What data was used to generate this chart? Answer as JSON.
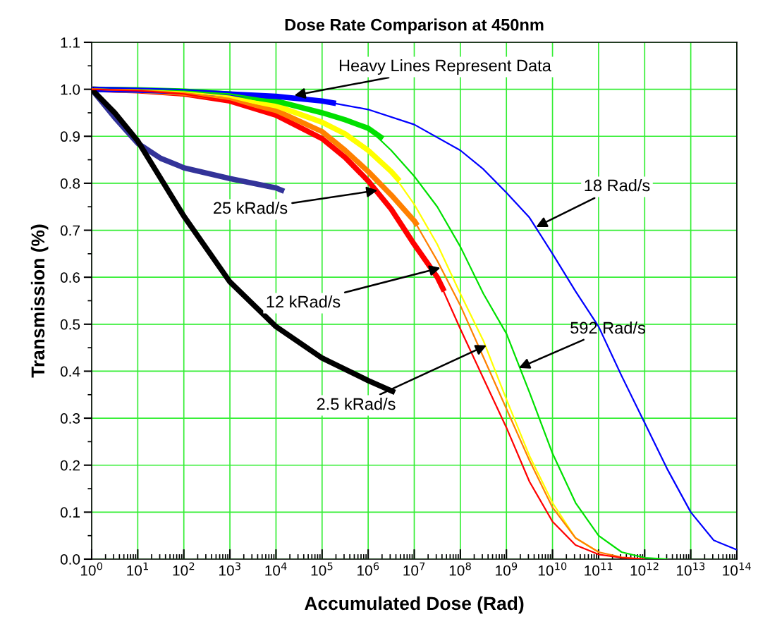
{
  "chart_data": {
    "type": "line",
    "title": "Dose Rate Comparison at 450nm",
    "xlabel": "Accumulated Dose (Rad)",
    "ylabel": "Transmission (%)",
    "log": "x",
    "grid": true,
    "line_style": "solid",
    "marker": "none",
    "xlim": [
      1,
      100000000000000.0
    ],
    "xticks": [
      {
        "value": 1,
        "label": "10$^{0}$"
      },
      {
        "value": 10,
        "label": "10$^{1}$"
      },
      {
        "value": 100,
        "label": "10$^{2}$"
      },
      {
        "value": 1000,
        "label": "10$^{3}$"
      },
      {
        "value": 10000.0,
        "label": "10$^{4}$"
      },
      {
        "value": 100000.0,
        "label": "10$^{5}$"
      },
      {
        "value": 1000000.0,
        "label": "10$^{6}$"
      },
      {
        "value": 10000000.0,
        "label": "10$^{7}$"
      },
      {
        "value": 100000000.0,
        "label": "10$^{8}$"
      },
      {
        "value": 1000000000.0,
        "label": "10$^{9}$"
      },
      {
        "value": 10000000000.0,
        "label": "10$^{10}$"
      },
      {
        "value": 100000000000.0,
        "label": "10$^{11}$"
      },
      {
        "value": 1000000000000.0,
        "label": "10$^{12}$"
      },
      {
        "value": 10000000000000.0,
        "label": "10$^{13}$"
      },
      {
        "value": 100000000000000.0,
        "label": "10$^{14}$"
      }
    ],
    "ylim": [
      0,
      1.1
    ],
    "yticks": [
      {
        "value": 0,
        "label": "0.0"
      },
      0.1,
      0.2,
      0.3,
      0.4,
      0.5,
      0.6,
      0.7,
      0.8,
      0.9,
      {
        "value": 1,
        "label": "1.0"
      },
      1.1
    ],
    "series": [
      {
        "color": "#ff0000",
        "x": [
          1,
          10,
          100,
          1000,
          10000.0,
          100000.0,
          316000.0,
          1000000.0,
          3160000.0,
          10000000.0,
          31600000.0,
          100000000.0,
          316000000.0,
          1000000000.0,
          3160000000.0,
          10000000000.0,
          31600000000.0,
          100000000000.0,
          316000000000.0,
          1000000000000.0
        ],
        "values": [
          1.0,
          0.997,
          0.99,
          0.975,
          0.945,
          0.895,
          0.855,
          0.805,
          0.745,
          0.67,
          0.6,
          0.49,
          0.385,
          0.28,
          0.165,
          0.08,
          0.03,
          0.01,
          0.003,
          0.0
        ]
      },
      {
        "color": "#ff8000",
        "x": [
          1,
          10,
          100,
          1000,
          10000.0,
          100000.0,
          316000.0,
          1000000.0,
          3160000.0,
          10000000.0,
          31600000.0,
          100000000.0,
          316000000.0,
          1000000000.0,
          3160000000.0,
          10000000000.0,
          31600000000.0,
          100000000000.0,
          316000000000.0,
          1000000000000.0
        ],
        "values": [
          1.0,
          0.998,
          0.992,
          0.98,
          0.955,
          0.91,
          0.87,
          0.825,
          0.775,
          0.72,
          0.635,
          0.54,
          0.43,
          0.32,
          0.21,
          0.11,
          0.045,
          0.015,
          0.004,
          0.0
        ]
      },
      {
        "color": "#ffff00",
        "x": [
          1,
          10,
          100,
          1000,
          10000.0,
          100000.0,
          316000.0,
          1000000.0,
          3160000.0,
          10000000.0,
          31600000.0,
          100000000.0,
          316000000.0,
          1000000000.0,
          3160000000.0,
          10000000000.0,
          31600000000.0,
          100000000000.0
        ],
        "values": [
          1.0,
          0.998,
          0.994,
          0.985,
          0.965,
          0.93,
          0.905,
          0.87,
          0.825,
          0.755,
          0.67,
          0.565,
          0.465,
          0.34,
          0.22,
          0.12,
          0.045,
          0.015
        ]
      },
      {
        "color": "#00e000",
        "x": [
          1,
          10,
          100,
          1000,
          10000.0,
          100000.0,
          316000.0,
          1000000.0,
          3160000.0,
          10000000.0,
          31600000.0,
          100000000.0,
          316000000.0,
          1000000000.0,
          3160000000.0,
          10000000000.0,
          31600000000.0,
          100000000000.0,
          316000000000.0,
          1000000000000.0,
          3160000000000.0
        ],
        "values": [
          1.0,
          0.999,
          0.996,
          0.99,
          0.975,
          0.95,
          0.935,
          0.917,
          0.87,
          0.815,
          0.75,
          0.665,
          0.565,
          0.48,
          0.355,
          0.225,
          0.12,
          0.05,
          0.015,
          0.003,
          0.0
        ]
      },
      {
        "color": "#0000ff",
        "x": [
          1,
          10,
          100,
          1000,
          10000.0,
          100000.0,
          1000000.0,
          10000000.0,
          100000000.0,
          316000000.0,
          1000000000.0,
          3160000000.0,
          10000000000.0,
          31600000000.0,
          100000000000.0,
          316000000000.0,
          1000000000000.0,
          3160000000000.0,
          10000000000000.0,
          31600000000000.0,
          100000000000000.0
        ],
        "values": [
          1.0,
          0.998,
          0.995,
          0.99,
          0.985,
          0.975,
          0.957,
          0.925,
          0.87,
          0.83,
          0.78,
          0.727,
          0.65,
          0.57,
          0.495,
          0.39,
          0.29,
          0.19,
          0.1,
          0.04,
          0.02
        ]
      },
      {
        "color": "#ff0000",
        "x": [
          1,
          10,
          100,
          1000,
          10000.0,
          100000.0,
          316000.0,
          1000000.0,
          3160000.0,
          10000000.0,
          31600000.0,
          44700000.0
        ],
        "values": [
          1.0,
          0.997,
          0.99,
          0.975,
          0.945,
          0.895,
          0.855,
          0.805,
          0.745,
          0.67,
          0.6,
          0.57
        ]
      },
      {
        "color": "#ff8000",
        "x": [
          1,
          10,
          100,
          1000,
          10000.0,
          100000.0,
          316000.0,
          1000000.0,
          3160000.0,
          10000000.0,
          11700000.0
        ],
        "values": [
          1.0,
          0.998,
          0.992,
          0.98,
          0.955,
          0.91,
          0.87,
          0.825,
          0.775,
          0.72,
          0.71
        ]
      },
      {
        "color": "#ffff00",
        "x": [
          1,
          10,
          100,
          1000,
          10000.0,
          100000.0,
          316000.0,
          1000000.0,
          3160000.0,
          4790000.0
        ],
        "values": [
          1.0,
          0.998,
          0.994,
          0.985,
          0.965,
          0.93,
          0.905,
          0.87,
          0.825,
          0.805
        ]
      },
      {
        "color": "#00e000",
        "x": [
          1,
          10,
          100,
          1000,
          10000.0,
          100000.0,
          316000.0,
          1000000.0,
          2090000.0
        ],
        "values": [
          1.0,
          0.999,
          0.996,
          0.99,
          0.975,
          0.95,
          0.935,
          0.917,
          0.895
        ]
      },
      {
        "color": "#0000ff",
        "x": [
          1,
          10,
          100,
          1000,
          10000.0,
          100000.0,
          200000.0
        ],
        "values": [
          1.0,
          0.998,
          0.995,
          0.99,
          0.985,
          0.975,
          0.97
        ]
      },
      {
        "color": "#333399",
        "x": [
          1,
          3.16,
          10,
          31.6,
          100,
          1000,
          10000.0,
          15000.0
        ],
        "values": [
          1.0,
          0.94,
          0.885,
          0.853,
          0.833,
          0.81,
          0.79,
          0.783
        ]
      },
      {
        "color": "#000000",
        "x": [
          1,
          3.16,
          10,
          31.6,
          100,
          1000,
          10000.0,
          100000.0,
          1000000.0,
          3800000.0
        ],
        "values": [
          1.0,
          0.95,
          0.89,
          0.81,
          0.73,
          0.59,
          0.495,
          0.428,
          0.38,
          0.355
        ]
      }
    ],
    "annotations": [
      {
        "text": "Heavy Lines Represent Data",
        "x": 25000,
        "y": 0.987
      },
      {
        "text": "25 kRad/s",
        "x": 1600000.0,
        "y": 0.785
      },
      {
        "text": "12 kRad/s",
        "x": 37000000.0,
        "y": 0.62
      },
      {
        "text": "2.5 kRad/s",
        "x": 370000000.0,
        "y": 0.455
      },
      {
        "text": "592 Rad/s",
        "x": 1860000000.0,
        "y": 0.407
      },
      {
        "text": "18 Rad/s",
        "x": 4400000000.0,
        "y": 0.707
      }
    ]
  }
}
